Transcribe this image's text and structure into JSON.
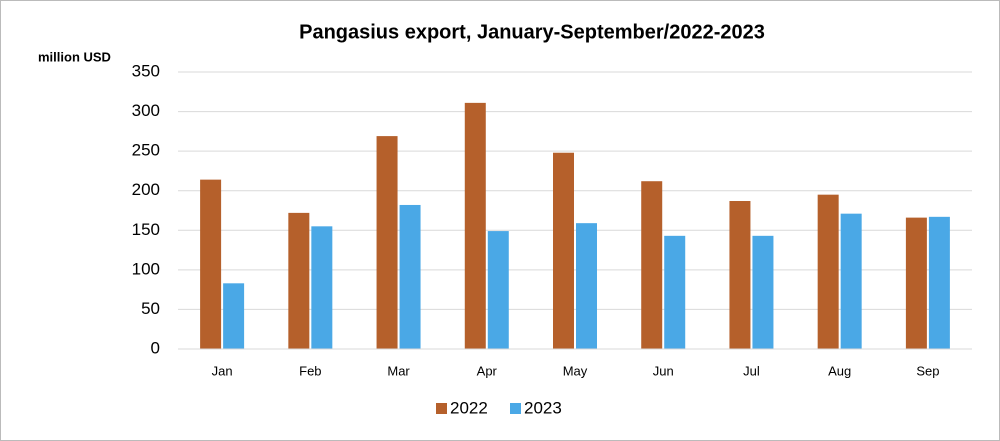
{
  "chart_data": {
    "type": "bar",
    "title": "Pangasius export, January-September/2022-2023",
    "y_label": "million USD",
    "categories": [
      "Jan",
      "Feb",
      "Mar",
      "Apr",
      "May",
      "Jun",
      "Jul",
      "Aug",
      "Sep"
    ],
    "series": [
      {
        "name": "2022",
        "color": "#b5602b",
        "values": [
          214,
          172,
          269,
          311,
          248,
          212,
          187,
          195,
          166
        ]
      },
      {
        "name": "2023",
        "color": "#4aa8e6",
        "values": [
          83,
          155,
          182,
          149,
          159,
          143,
          143,
          171,
          167
        ]
      }
    ],
    "ylim": [
      0,
      350
    ],
    "yticks": [
      0,
      50,
      100,
      150,
      200,
      250,
      300,
      350
    ],
    "grid": true,
    "legend": "bottom"
  }
}
